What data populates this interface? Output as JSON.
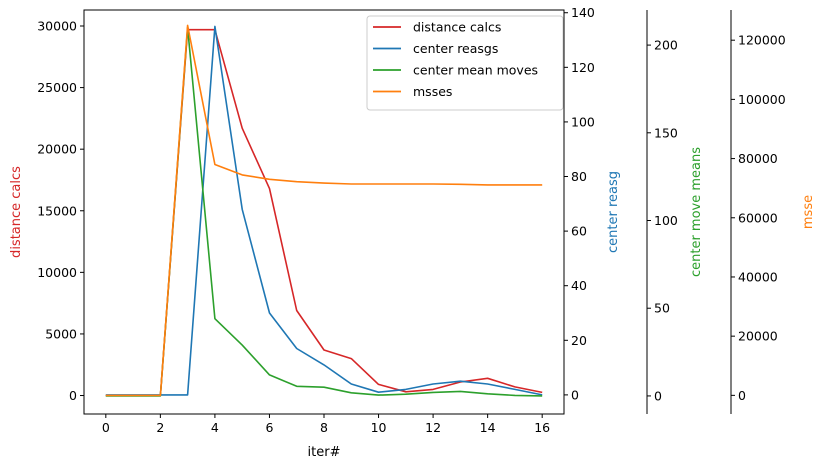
{
  "chart_data": {
    "type": "line",
    "x": [
      0,
      1,
      2,
      3,
      4,
      5,
      6,
      7,
      8,
      9,
      10,
      11,
      12,
      13,
      14,
      15,
      16
    ],
    "xlabel": "iter#",
    "xlim": [
      -0.8,
      16.8
    ],
    "xticks": [
      0,
      2,
      4,
      6,
      8,
      10,
      12,
      14,
      16
    ],
    "axes": [
      {
        "id": "distance",
        "label": "distance calcs",
        "color": "#d62728",
        "side": "left",
        "ylim": [
          -1500,
          31300
        ],
        "ticks": [
          0,
          5000,
          10000,
          15000,
          20000,
          25000,
          30000
        ]
      },
      {
        "id": "reasgs",
        "label": "center reasg",
        "color": "#1f77b4",
        "side": "right",
        "ylim": [
          -7,
          141
        ],
        "ticks": [
          0,
          20,
          40,
          60,
          80,
          100,
          120,
          140
        ]
      },
      {
        "id": "moves",
        "label": "center move means",
        "color": "#2ca02c",
        "side": "right",
        "ylim": [
          -10.3,
          220
        ],
        "ticks": [
          0,
          50,
          100,
          150,
          200
        ]
      },
      {
        "id": "msse",
        "label": "msse",
        "color": "#ff7f0e",
        "side": "right",
        "ylim": [
          -6300,
          130200
        ],
        "ticks": [
          0,
          20000,
          40000,
          60000,
          80000,
          100000,
          120000
        ]
      }
    ],
    "series": [
      {
        "name": "distance calcs",
        "axis": "distance",
        "color": "#d62728",
        "values": [
          0,
          0,
          0,
          29700,
          29700,
          21700,
          16800,
          6900,
          3700,
          3000,
          900,
          300,
          500,
          1100,
          1400,
          700,
          250
        ]
      },
      {
        "name": "center reasgs",
        "axis": "reasgs",
        "color": "#1f77b4",
        "values": [
          0,
          0,
          0,
          0,
          135,
          68,
          30,
          17,
          11,
          4,
          1,
          2,
          4,
          5,
          4,
          2,
          0
        ]
      },
      {
        "name": "center mean moves",
        "axis": "moves",
        "color": "#2ca02c",
        "values": [
          0,
          0,
          0,
          210,
          44,
          29,
          12,
          5.5,
          5,
          1.8,
          0.5,
          1,
          2,
          2.6,
          1.2,
          0.3,
          0
        ]
      },
      {
        "name": "msses",
        "axis": "msse",
        "color": "#ff7f0e",
        "values": [
          0,
          0,
          0,
          125000,
          78000,
          74500,
          73000,
          72200,
          71700,
          71400,
          71400,
          71400,
          71400,
          71300,
          71100,
          71100,
          71100
        ]
      }
    ],
    "legend_position": "top-right"
  }
}
